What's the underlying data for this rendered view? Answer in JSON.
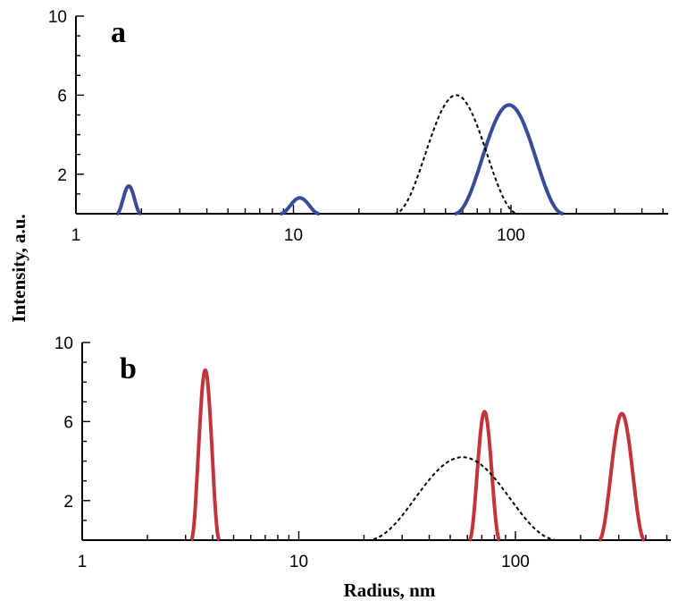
{
  "chart_data": [
    {
      "type": "line",
      "panel_label": "a",
      "x_scale": "log",
      "xlim": [
        1,
        500
      ],
      "ylim": [
        0,
        10
      ],
      "x_ticks": [
        1,
        10,
        100
      ],
      "x_tick_labels": [
        "1",
        "10",
        "100"
      ],
      "y_ticks": [
        2,
        6,
        10
      ],
      "y_tick_labels": [
        "2",
        "6",
        "10"
      ],
      "grid": false,
      "series": [
        {
          "style": "solid",
          "color": "#3a4b95",
          "peaks": [
            {
              "center": 1.75,
              "height": 1.4,
              "width_decades": 0.11
            },
            {
              "center": 10.7,
              "height": 0.8,
              "width_decades": 0.18
            },
            {
              "center": 98,
              "height": 5.5,
              "width_decades": 0.5
            }
          ]
        },
        {
          "style": "dashed",
          "color": "#000000",
          "peaks": [
            {
              "center": 56,
              "height": 6.0,
              "width_decades": 0.57
            }
          ]
        }
      ]
    },
    {
      "type": "line",
      "panel_label": "b",
      "x_scale": "log",
      "xlim": [
        1,
        500
      ],
      "ylim": [
        0,
        10
      ],
      "x_ticks": [
        1,
        10,
        100
      ],
      "x_tick_labels": [
        "1",
        "10",
        "100"
      ],
      "y_ticks": [
        2,
        6,
        10
      ],
      "y_tick_labels": [
        "2",
        "6",
        "10"
      ],
      "grid": false,
      "series": [
        {
          "style": "solid",
          "color": "#c0343a",
          "peaks": [
            {
              "center": 3.7,
              "height": 8.6,
              "width_decades": 0.13
            },
            {
              "center": 72,
              "height": 6.5,
              "width_decades": 0.14
            },
            {
              "center": 310,
              "height": 6.4,
              "width_decades": 0.21
            }
          ]
        },
        {
          "style": "dashed",
          "color": "#000000",
          "peaks": [
            {
              "center": 57,
              "height": 4.2,
              "width_decades": 0.88
            }
          ]
        }
      ]
    }
  ],
  "ylabel": "Intensity, a.u.",
  "xlabel": "Radius, nm"
}
